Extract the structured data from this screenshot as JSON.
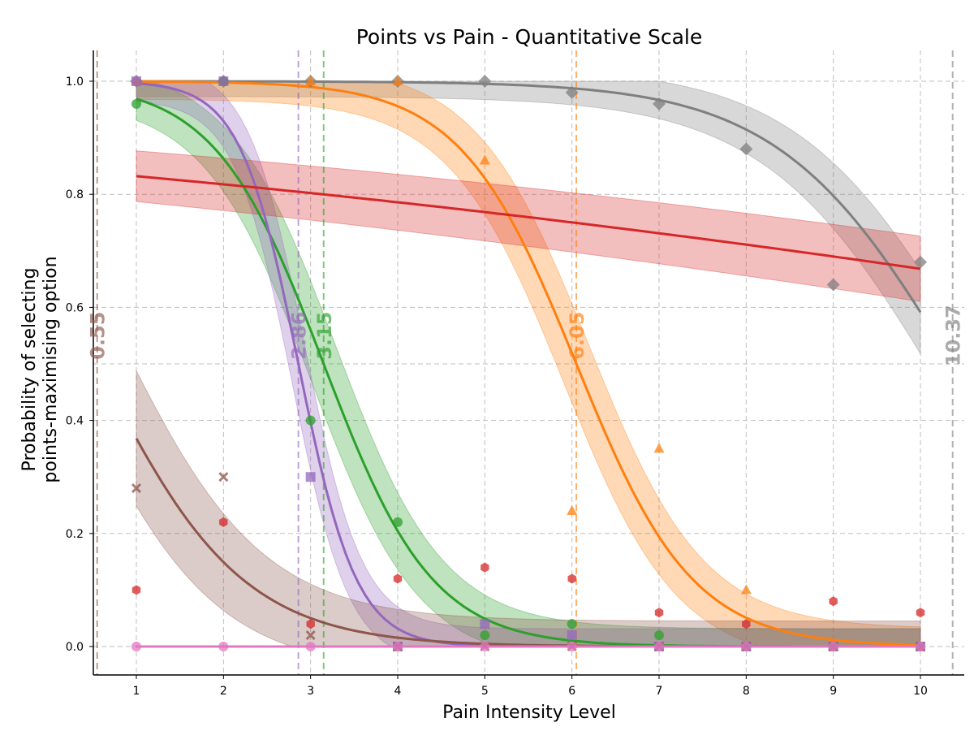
{
  "chart_data": {
    "type": "scatter",
    "title": "Points vs Pain - Quantitative Scale",
    "xlabel": "Pain Intensity Level",
    "ylabel_line1": "Probability of selecting",
    "ylabel_line2": "points-maximising option",
    "xlim": [
      0.55,
      10.5
    ],
    "ylim": [
      -0.05,
      1.05
    ],
    "x_ticks": [
      "1",
      "2",
      "3",
      "4",
      "5",
      "6",
      "7",
      "8",
      "9",
      "10"
    ],
    "y_ticks": [
      "0.0",
      "0.2",
      "0.4",
      "0.6",
      "0.8",
      "1.0"
    ],
    "grid": true,
    "series": [
      {
        "color": "#7f7f7f",
        "marker": "diamond",
        "x": [
          1,
          2,
          3,
          4,
          5,
          6,
          7,
          8,
          9,
          10
        ],
        "y": [
          1.0,
          1.0,
          1.0,
          1.0,
          1.0,
          0.98,
          0.96,
          0.88,
          0.64,
          0.68
        ],
        "fit": {
          "x50": 10.37,
          "slope": 1.0,
          "band": 0.06
        },
        "threshold": 10.37,
        "threshold_label": "10.37"
      },
      {
        "color": "#ff7f0e",
        "marker": "triangle",
        "x": [
          1,
          2,
          3,
          4,
          5,
          6,
          7,
          8,
          9,
          10
        ],
        "y": [
          1.0,
          1.0,
          1.0,
          1.0,
          0.86,
          0.24,
          0.35,
          0.1,
          0.0,
          0.0
        ],
        "fit": {
          "x50": 6.05,
          "slope": 1.5,
          "band": 0.07
        },
        "threshold": 6.05,
        "threshold_label": "6.05"
      },
      {
        "color": "#2ca02c",
        "marker": "circle",
        "x": [
          1,
          2,
          3,
          4,
          5,
          6,
          7,
          8,
          9,
          10
        ],
        "y": [
          0.96,
          1.0,
          0.4,
          0.22,
          0.02,
          0.04,
          0.02,
          0.0,
          0.0,
          0.0
        ],
        "fit": {
          "x50": 3.15,
          "slope": 1.6,
          "band": 0.07
        },
        "threshold": 3.15,
        "threshold_label": "3.15"
      },
      {
        "color": "#9467bd",
        "marker": "square",
        "x": [
          1,
          2,
          3,
          4,
          5,
          6,
          7,
          8,
          9,
          10
        ],
        "y": [
          1.0,
          1.0,
          0.3,
          0.0,
          0.04,
          0.02,
          0.0,
          0.0,
          0.0,
          0.0
        ],
        "fit": {
          "x50": 2.86,
          "slope": 3.0,
          "band": 0.07
        },
        "threshold": 2.86,
        "threshold_label": "2.86"
      },
      {
        "color": "#8c564b",
        "marker": "x",
        "x": [
          1,
          2,
          3,
          4,
          5,
          6,
          7,
          8,
          9,
          10
        ],
        "y": [
          0.28,
          0.3,
          0.02,
          0.0,
          0.0,
          0.0,
          0.0,
          0.0,
          0.0,
          0.0
        ],
        "fit": {
          "x50": 0.55,
          "slope": 1.2,
          "band": 0.1
        },
        "threshold": 0.55,
        "threshold_label": "0.55"
      },
      {
        "color": "#d62728",
        "marker": "hexagon",
        "x": [
          1,
          2,
          3,
          4,
          5,
          6,
          7,
          8,
          9,
          10
        ],
        "y": [
          0.1,
          0.22,
          0.04,
          0.12,
          0.14,
          0.12,
          0.06,
          0.04,
          0.08,
          0.06
        ],
        "fit": {
          "x50": 17.0,
          "slope": 0.1,
          "band": 0.05
        },
        "threshold": null,
        "threshold_label": ""
      },
      {
        "color": "#e377c2",
        "marker": "circle",
        "x": [
          1,
          2,
          3,
          4,
          5,
          6,
          7,
          8,
          9,
          10
        ],
        "y": [
          0.0,
          0.0,
          0.0,
          0.0,
          0.0,
          0.0,
          0.0,
          0.0,
          0.0,
          0.0
        ],
        "fit": {
          "flat": 0.0,
          "band": 0.0
        },
        "threshold": null,
        "threshold_label": ""
      }
    ]
  }
}
